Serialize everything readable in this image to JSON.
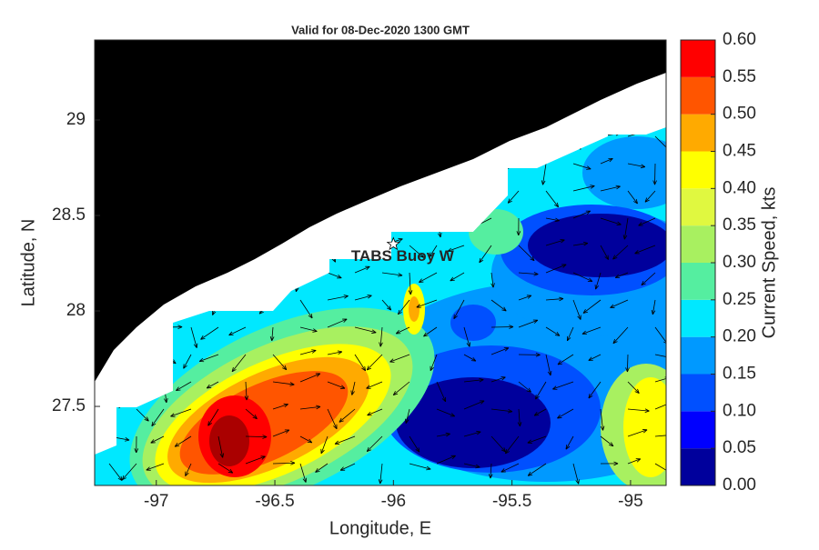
{
  "chart_data": {
    "type": "contour-map",
    "title": "Valid for 08-Dec-2020 1300 GMT",
    "x_label": "Longitude, E",
    "y_label": "Latitude, N",
    "colorbar_label": "Current Speed, kts",
    "xlim": [
      -97.26,
      -94.85
    ],
    "ylim": [
      27.086,
      29.419
    ],
    "xticks": [
      -97,
      -96.5,
      -96,
      -95.5,
      -95
    ],
    "yticks": [
      27.5,
      28,
      28.5,
      29
    ],
    "colorbar": {
      "lim": [
        0,
        0.6
      ],
      "ticks": [
        {
          "value": 0,
          "label": "0.00"
        },
        {
          "value": 0.05,
          "label": "0.05"
        },
        {
          "value": 0.1,
          "label": "0.10"
        },
        {
          "value": 0.15,
          "label": "0.15"
        },
        {
          "value": 0.2,
          "label": "0.20"
        },
        {
          "value": 0.25,
          "label": "0.25"
        },
        {
          "value": 0.3,
          "label": "0.30"
        },
        {
          "value": 0.35,
          "label": "0.35"
        },
        {
          "value": 0.4,
          "label": "0.40"
        },
        {
          "value": 0.45,
          "label": "0.45"
        },
        {
          "value": 0.5,
          "label": "0.50"
        },
        {
          "value": 0.55,
          "label": "0.55"
        },
        {
          "value": 0.6,
          "label": "0.60"
        }
      ],
      "colors": [
        "#00009c",
        "#0000ff",
        "#0050ff",
        "#0099ff",
        "#00e8ff",
        "#55eea0",
        "#a8f060",
        "#e0f840",
        "#ffff00",
        "#ffaa00",
        "#ff5500",
        "#ff0000",
        "#aa0000"
      ]
    },
    "station": {
      "label": "TABS Buoy W",
      "lon": -96.0,
      "lat": 28.35
    }
  }
}
